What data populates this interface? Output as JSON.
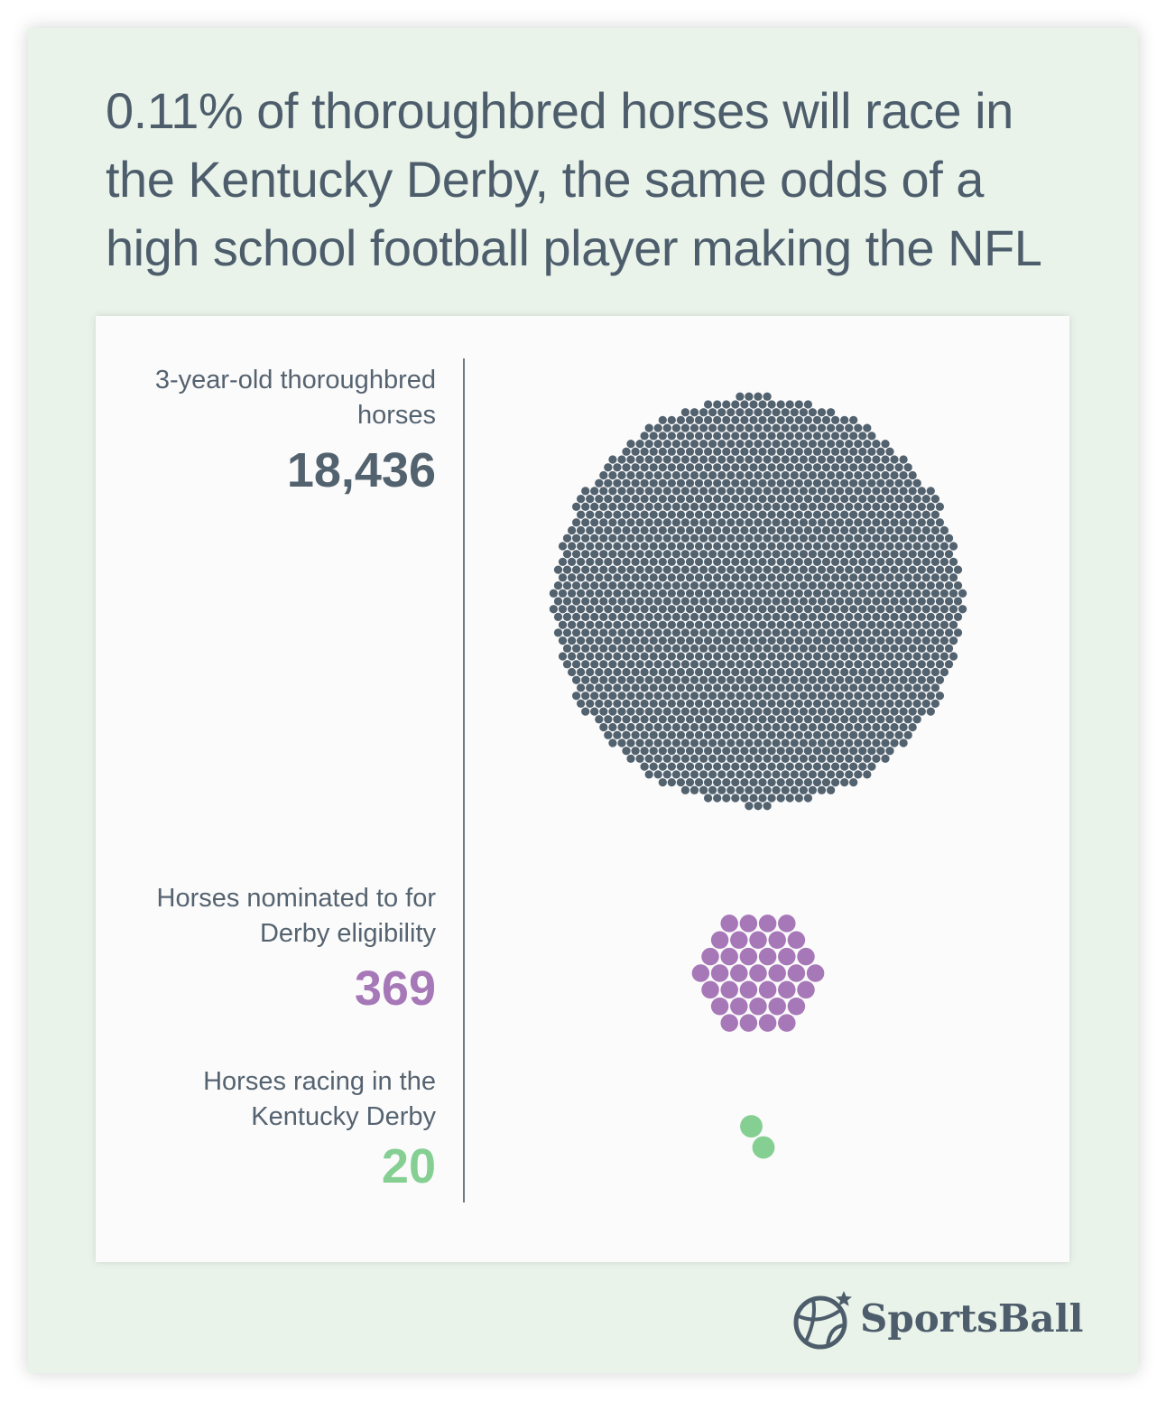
{
  "title": "0.11% of thoroughbred horses will race in the Kentucky Derby, the same odds of a high school football player making the NFL",
  "chart_data": {
    "type": "unit-chart",
    "categories": [
      {
        "label": "3-year-old thoroughbred horses",
        "value": 18436,
        "value_display": "18,436",
        "color": "#53626f"
      },
      {
        "label": "Horses nominated to for Derby eligibility",
        "value": 369,
        "value_display": "369",
        "color": "#a778b8"
      },
      {
        "label": "Horses racing in the Kentucky Derby",
        "value": 20,
        "value_display": "20",
        "color": "#86cf93"
      }
    ]
  },
  "brand": {
    "name": "SportsBall",
    "icon": "basketball-star-icon",
    "color": "#4d5d6b"
  }
}
